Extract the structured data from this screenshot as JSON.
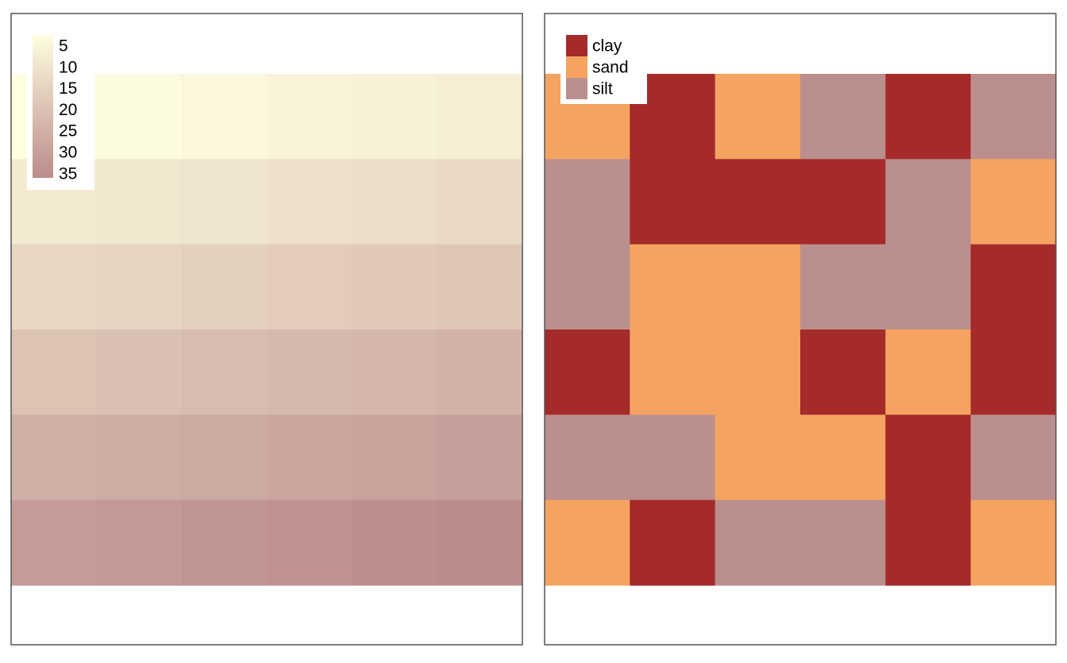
{
  "chart_data": [
    {
      "type": "heatmap",
      "title": "",
      "xlabel": "",
      "ylabel": "",
      "rows": 6,
      "cols": 6,
      "values": [
        [
          1,
          2,
          3,
          4,
          5,
          6
        ],
        [
          7,
          8,
          9,
          10,
          11,
          12
        ],
        [
          13,
          14,
          15,
          16,
          17,
          18
        ],
        [
          19,
          20,
          21,
          22,
          23,
          24
        ],
        [
          25,
          26,
          27,
          28,
          29,
          30
        ],
        [
          31,
          32,
          33,
          34,
          35,
          36
        ]
      ],
      "value_range": [
        1,
        36
      ],
      "colorscale": [
        "#fffee0",
        "#bb8b8b"
      ],
      "legend": {
        "type": "colorbar",
        "position": "top-left",
        "ticks": [
          5,
          10,
          15,
          20,
          25,
          30,
          35
        ]
      }
    },
    {
      "type": "heatmap",
      "title": "",
      "xlabel": "",
      "ylabel": "",
      "rows": 6,
      "cols": 6,
      "categories": [
        "clay",
        "sand",
        "silt"
      ],
      "colors": {
        "clay": "#a52a2a",
        "sand": "#f4a460",
        "silt": "#bc8f8f"
      },
      "values": [
        [
          "sand",
          "clay",
          "sand",
          "silt",
          "clay",
          "silt"
        ],
        [
          "silt",
          "clay",
          "clay",
          "clay",
          "silt",
          "sand"
        ],
        [
          "silt",
          "sand",
          "sand",
          "silt",
          "silt",
          "clay"
        ],
        [
          "clay",
          "sand",
          "sand",
          "clay",
          "sand",
          "clay"
        ],
        [
          "silt",
          "silt",
          "sand",
          "sand",
          "clay",
          "silt"
        ],
        [
          "sand",
          "clay",
          "silt",
          "silt",
          "clay",
          "sand"
        ]
      ],
      "legend": {
        "type": "categorical",
        "position": "top-left",
        "entries": [
          "clay",
          "sand",
          "silt"
        ]
      }
    }
  ]
}
